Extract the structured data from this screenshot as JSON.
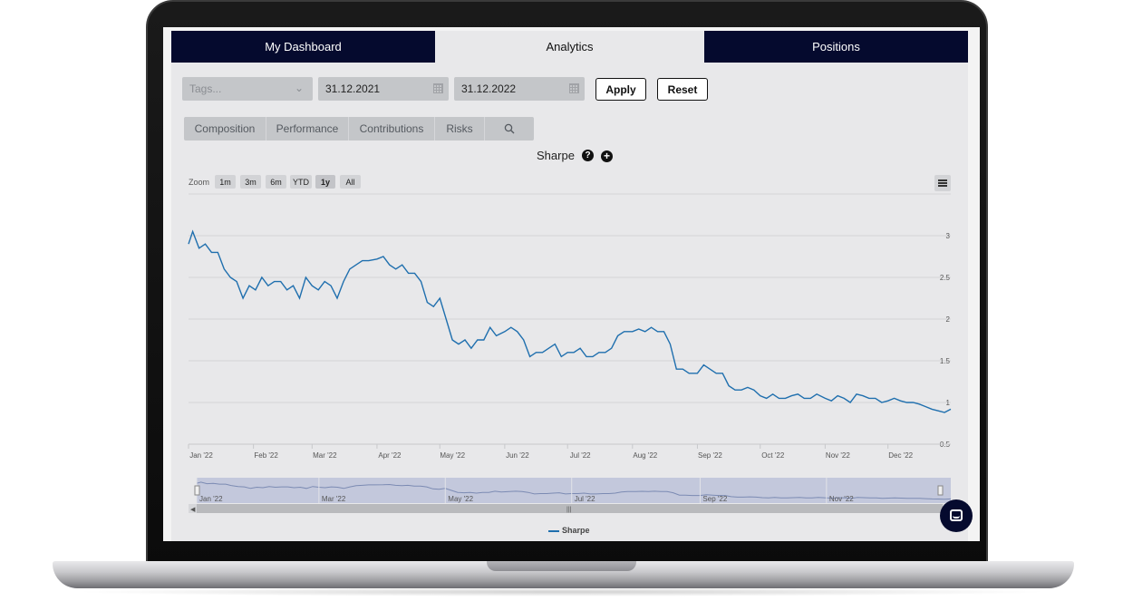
{
  "tabs": [
    {
      "label": "My Dashboard",
      "active": false
    },
    {
      "label": "Analytics",
      "active": true
    },
    {
      "label": "Positions",
      "active": false
    }
  ],
  "filters": {
    "tags_placeholder": "Tags...",
    "start_date": "31.12.2021",
    "end_date": "31.12.2022",
    "apply_label": "Apply",
    "reset_label": "Reset"
  },
  "sub_tabs": [
    "Composition",
    "Performance",
    "Contributions",
    "Risks"
  ],
  "chart_title": "Sharpe",
  "zoom": {
    "label": "Zoom",
    "buttons": [
      "1m",
      "3m",
      "6m",
      "YTD",
      "1y",
      "All"
    ],
    "active": "1y"
  },
  "colors": {
    "nav_dark": "#050a2e",
    "series_line": "#1f6fae",
    "navigator_fill": "#c3c8dc"
  },
  "chart_data": {
    "type": "line",
    "title": "Sharpe",
    "x_tick_labels": [
      "Jan '22",
      "Feb '22",
      "Mar '22",
      "Apr '22",
      "May '22",
      "Jun '22",
      "Jul '22",
      "Aug '22",
      "Sep '22",
      "Oct '22",
      "Nov '22",
      "Dec '22"
    ],
    "navigator_tick_labels": [
      "Jan '22",
      "Mar '22",
      "May '22",
      "Jul '22",
      "Sep '22",
      "Nov '22"
    ],
    "y_tick_labels": [
      "3",
      "2.5",
      "2",
      "1.5",
      "1",
      "0.5"
    ],
    "ylim": [
      0.5,
      3.5
    ],
    "grid": true,
    "legend_position": "bottom",
    "series": [
      {
        "name": "Sharpe",
        "x": [
          "2022-01-01",
          "2022-01-03",
          "2022-01-06",
          "2022-01-09",
          "2022-01-12",
          "2022-01-15",
          "2022-01-18",
          "2022-01-21",
          "2022-01-24",
          "2022-01-27",
          "2022-01-30",
          "2022-02-02",
          "2022-02-05",
          "2022-02-08",
          "2022-02-11",
          "2022-02-14",
          "2022-02-17",
          "2022-02-20",
          "2022-02-23",
          "2022-02-26",
          "2022-03-01",
          "2022-03-04",
          "2022-03-07",
          "2022-03-10",
          "2022-03-13",
          "2022-03-16",
          "2022-03-19",
          "2022-03-22",
          "2022-03-25",
          "2022-03-28",
          "2022-04-01",
          "2022-04-04",
          "2022-04-07",
          "2022-04-10",
          "2022-04-13",
          "2022-04-16",
          "2022-04-19",
          "2022-04-22",
          "2022-04-25",
          "2022-04-28",
          "2022-05-01",
          "2022-05-04",
          "2022-05-07",
          "2022-05-10",
          "2022-05-13",
          "2022-05-16",
          "2022-05-19",
          "2022-05-22",
          "2022-05-25",
          "2022-05-28",
          "2022-06-01",
          "2022-06-04",
          "2022-06-07",
          "2022-06-10",
          "2022-06-13",
          "2022-06-16",
          "2022-06-19",
          "2022-06-22",
          "2022-06-25",
          "2022-06-28",
          "2022-07-01",
          "2022-07-04",
          "2022-07-07",
          "2022-07-10",
          "2022-07-13",
          "2022-07-16",
          "2022-07-19",
          "2022-07-22",
          "2022-07-25",
          "2022-07-28",
          "2022-08-01",
          "2022-08-04",
          "2022-08-07",
          "2022-08-10",
          "2022-08-13",
          "2022-08-16",
          "2022-08-19",
          "2022-08-22",
          "2022-08-25",
          "2022-08-28",
          "2022-09-01",
          "2022-09-04",
          "2022-09-07",
          "2022-09-10",
          "2022-09-13",
          "2022-09-16",
          "2022-09-19",
          "2022-09-22",
          "2022-09-25",
          "2022-09-28",
          "2022-10-01",
          "2022-10-04",
          "2022-10-07",
          "2022-10-10",
          "2022-10-13",
          "2022-10-16",
          "2022-10-19",
          "2022-10-22",
          "2022-10-25",
          "2022-10-28",
          "2022-11-01",
          "2022-11-04",
          "2022-11-07",
          "2022-11-10",
          "2022-11-13",
          "2022-11-16",
          "2022-11-19",
          "2022-11-22",
          "2022-11-25",
          "2022-11-28",
          "2022-12-01",
          "2022-12-04",
          "2022-12-07",
          "2022-12-10",
          "2022-12-13",
          "2022-12-16",
          "2022-12-19",
          "2022-12-22",
          "2022-12-25",
          "2022-12-28",
          "2022-12-31"
        ],
        "values": [
          2.9,
          3.05,
          2.85,
          2.9,
          2.8,
          2.8,
          2.6,
          2.5,
          2.45,
          2.25,
          2.4,
          2.35,
          2.5,
          2.4,
          2.45,
          2.45,
          2.35,
          2.4,
          2.25,
          2.5,
          2.4,
          2.35,
          2.45,
          2.4,
          2.25,
          2.45,
          2.6,
          2.65,
          2.7,
          2.7,
          2.72,
          2.75,
          2.65,
          2.6,
          2.65,
          2.55,
          2.55,
          2.45,
          2.2,
          2.15,
          2.25,
          2.0,
          1.75,
          1.7,
          1.75,
          1.65,
          1.75,
          1.75,
          1.9,
          1.8,
          1.85,
          1.9,
          1.85,
          1.75,
          1.55,
          1.6,
          1.6,
          1.65,
          1.7,
          1.55,
          1.6,
          1.6,
          1.65,
          1.55,
          1.55,
          1.6,
          1.6,
          1.65,
          1.8,
          1.85,
          1.85,
          1.88,
          1.85,
          1.9,
          1.85,
          1.85,
          1.7,
          1.4,
          1.4,
          1.35,
          1.35,
          1.45,
          1.4,
          1.35,
          1.35,
          1.2,
          1.15,
          1.15,
          1.18,
          1.15,
          1.08,
          1.05,
          1.1,
          1.05,
          1.05,
          1.08,
          1.1,
          1.05,
          1.05,
          1.1,
          1.05,
          1.02,
          1.08,
          1.05,
          1.0,
          1.1,
          1.08,
          1.05,
          1.05,
          1.0,
          1.02,
          1.05,
          1.02,
          1.0,
          1.0,
          0.98,
          0.95,
          0.92,
          0.9,
          0.88,
          0.92
        ]
      }
    ]
  }
}
